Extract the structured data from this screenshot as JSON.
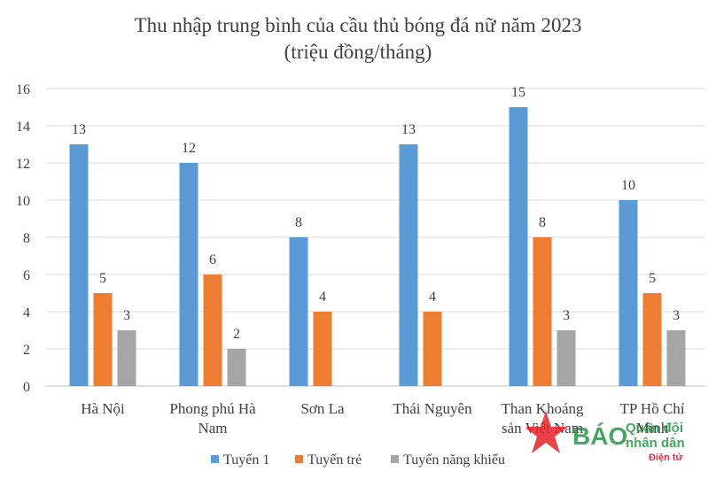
{
  "chart_data": {
    "type": "bar",
    "title": "Thu nhập trung bình của cầu thủ bóng đá nữ năm 2023",
    "subtitle": "(triệu đồng/tháng)",
    "categories": [
      [
        "Hà Nội"
      ],
      [
        "Phong phú Hà",
        "Nam"
      ],
      [
        "Sơn La"
      ],
      [
        "Thái Nguyên"
      ],
      [
        "Than Khoáng",
        "sản Việt Nam"
      ],
      [
        "TP Hồ Chí",
        "Minh"
      ]
    ],
    "series": [
      {
        "name": "Tuyến 1",
        "color": "#5b9bd5",
        "values": [
          13,
          12,
          8,
          13,
          15,
          10
        ]
      },
      {
        "name": "Tuyến trẻ",
        "color": "#ed7d31",
        "values": [
          5,
          6,
          4,
          4,
          8,
          5
        ]
      },
      {
        "name": "Tuyến năng khiếu",
        "color": "#a5a5a5",
        "values": [
          3,
          2,
          null,
          null,
          3,
          3
        ]
      }
    ],
    "ylim": [
      0,
      16
    ],
    "yticks": [
      0,
      2,
      4,
      6,
      8,
      10,
      12,
      14,
      16
    ],
    "grid": true,
    "legend": "bottom",
    "xlabel": "",
    "ylabel": ""
  },
  "watermark": {
    "brand": "BÁO",
    "name_top": "Quân đội",
    "name_bottom": "nhân dân",
    "tag": "Điện tử",
    "colors": {
      "star": "#e8212a",
      "text": "#1b8f3a",
      "tag": "#c8102e"
    }
  }
}
